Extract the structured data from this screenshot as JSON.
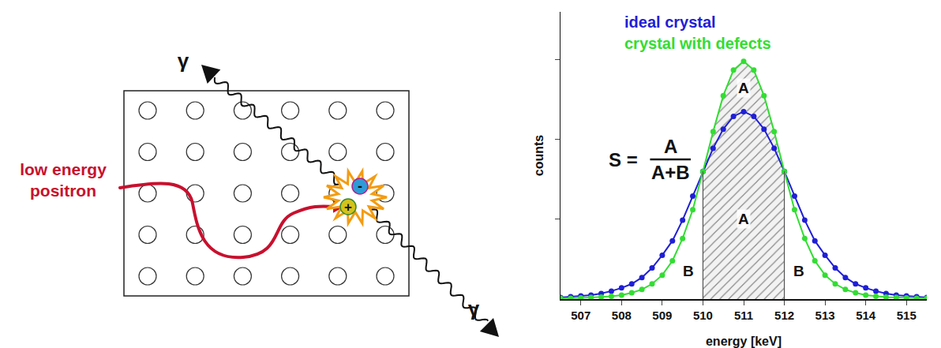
{
  "diagram": {
    "positron_label": [
      "low energy",
      "positron"
    ],
    "photon_labels": [
      "γ",
      "γ"
    ],
    "electron_sign": "-",
    "positron_sign": "+",
    "lattice": {
      "rows": 5,
      "columns": 6
    }
  },
  "chart_data": {
    "type": "line",
    "marker": "circle",
    "x_title": "energy [keV]",
    "y_title": "counts",
    "x": [
      506.5,
      506.75,
      507,
      507.25,
      507.5,
      507.75,
      508,
      508.25,
      508.5,
      508.75,
      509,
      509.25,
      509.5,
      509.75,
      510,
      510.25,
      510.5,
      510.75,
      511,
      511.25,
      511.5,
      511.75,
      512,
      512.25,
      512.5,
      512.75,
      513,
      513.25,
      513.5,
      513.75,
      514,
      514.25,
      514.5,
      514.75,
      515,
      515.25,
      515.5
    ],
    "series": [
      {
        "name": "ideal crystal",
        "color": "#1f1fd6",
        "values": [
          0.02,
          0.03,
          0.04,
          0.05,
          0.07,
          0.1,
          0.14,
          0.19,
          0.27,
          0.39,
          0.55,
          0.73,
          0.99,
          1.29,
          1.6,
          1.89,
          2.13,
          2.29,
          2.35,
          2.29,
          2.13,
          1.89,
          1.6,
          1.29,
          0.99,
          0.73,
          0.55,
          0.39,
          0.27,
          0.19,
          0.14,
          0.1,
          0.07,
          0.05,
          0.04,
          0.03,
          0.02
        ]
      },
      {
        "name": "crystal with defects",
        "color": "#33dd33",
        "values": [
          0.01,
          0.01,
          0.015,
          0.02,
          0.025,
          0.035,
          0.05,
          0.08,
          0.12,
          0.19,
          0.3,
          0.48,
          0.76,
          1.12,
          1.6,
          2.1,
          2.55,
          2.87,
          2.98,
          2.87,
          2.55,
          2.1,
          1.6,
          1.12,
          0.76,
          0.48,
          0.3,
          0.19,
          0.12,
          0.08,
          0.05,
          0.035,
          0.025,
          0.02,
          0.015,
          0.01,
          0.01
        ]
      }
    ],
    "xlim": [
      506.5,
      515.5
    ],
    "xticks": [
      507,
      508,
      509,
      510,
      511,
      512,
      513,
      514,
      515
    ],
    "ylim": [
      0,
      3.6
    ],
    "yticks": [
      1,
      2,
      3
    ],
    "tick_labels": "x",
    "shaded_region": {
      "from": 510,
      "to": 512,
      "series": "crystal with defects"
    },
    "annotations": [
      {
        "text": "A",
        "x": 511,
        "y": 2.65
      },
      {
        "text": "A",
        "x": 511,
        "y": 1.0
      },
      {
        "text": "B",
        "x": 509.65,
        "y": 0.35
      },
      {
        "text": "B",
        "x": 512.35,
        "y": 0.35
      }
    ],
    "formula": {
      "lhs": "S =",
      "numerator": "A",
      "denominator": "A+B"
    }
  }
}
